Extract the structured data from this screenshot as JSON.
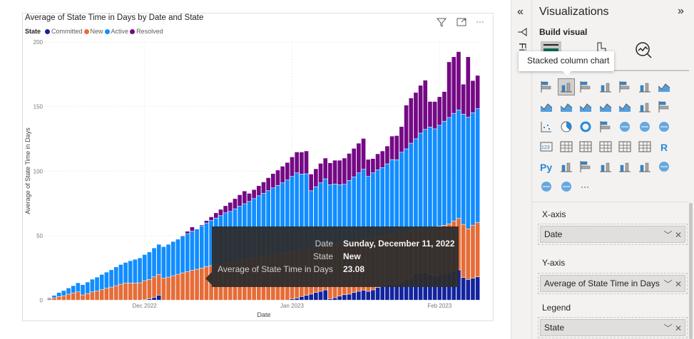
{
  "visual": {
    "title": "Average of State Time in Days by Date and State",
    "legend_title": "State",
    "header_icons": [
      "filter-icon",
      "focus-mode-icon",
      "more-options-icon"
    ],
    "more_label": "···"
  },
  "tooltip": {
    "rows": [
      {
        "key": "Date",
        "value": "Sunday, December 11, 2022"
      },
      {
        "key": "State",
        "value": "New"
      },
      {
        "key": "Average of State Time in Days",
        "value": "23.08"
      }
    ]
  },
  "chart_data": {
    "type": "bar",
    "stacked": true,
    "title": "Average of State Time in Days by Date and State",
    "xlabel": "Date",
    "ylabel": "Average of State Time in Days",
    "ylim": [
      0,
      200
    ],
    "yticks": [
      "0",
      "50",
      "100",
      "150",
      "200"
    ],
    "xticks": [
      {
        "label": "Dec 2022",
        "date": "2022-12-01"
      },
      {
        "label": "Jan 2023",
        "date": "2023-01-01"
      },
      {
        "label": "Feb 2023",
        "date": "2023-02-01"
      }
    ],
    "grid": true,
    "legend": "top-left",
    "x": [
      "2022-11-11",
      "2022-11-12",
      "2022-11-13",
      "2022-11-14",
      "2022-11-15",
      "2022-11-16",
      "2022-11-17",
      "2022-11-18",
      "2022-11-19",
      "2022-11-20",
      "2022-11-21",
      "2022-11-22",
      "2022-11-23",
      "2022-11-24",
      "2022-11-25",
      "2022-11-26",
      "2022-11-27",
      "2022-11-28",
      "2022-11-29",
      "2022-11-30",
      "2022-12-01",
      "2022-12-02",
      "2022-12-03",
      "2022-12-04",
      "2022-12-05",
      "2022-12-06",
      "2022-12-07",
      "2022-12-08",
      "2022-12-09",
      "2022-12-10",
      "2022-12-11",
      "2022-12-12",
      "2022-12-13",
      "2022-12-14",
      "2022-12-15",
      "2022-12-16",
      "2022-12-17",
      "2022-12-18",
      "2022-12-19",
      "2022-12-20",
      "2022-12-21",
      "2022-12-22",
      "2022-12-23",
      "2022-12-24",
      "2022-12-25",
      "2022-12-26",
      "2022-12-27",
      "2022-12-28",
      "2022-12-29",
      "2022-12-30",
      "2022-12-31",
      "2023-01-01",
      "2023-01-02",
      "2023-01-03",
      "2023-01-04",
      "2023-01-05",
      "2023-01-06",
      "2023-01-07",
      "2023-01-08",
      "2023-01-09",
      "2023-01-10",
      "2023-01-11",
      "2023-01-12",
      "2023-01-13",
      "2023-01-14",
      "2023-01-15",
      "2023-01-16",
      "2023-01-17",
      "2023-01-18",
      "2023-01-19",
      "2023-01-20",
      "2023-01-21",
      "2023-01-22",
      "2023-01-23",
      "2023-01-24",
      "2023-01-25",
      "2023-01-26",
      "2023-01-27",
      "2023-01-28",
      "2023-01-29",
      "2023-01-30",
      "2023-01-31",
      "2023-02-01",
      "2023-02-02",
      "2023-02-03",
      "2023-02-04",
      "2023-02-05",
      "2023-02-06",
      "2023-02-07",
      "2023-02-08",
      "2023-02-09"
    ],
    "series": [
      {
        "name": "Committed",
        "color": "#12239e",
        "values": [
          0,
          0,
          0,
          0,
          0,
          0,
          0,
          0,
          0,
          0,
          0,
          0,
          0,
          0,
          0,
          0,
          0,
          0,
          0,
          0,
          0.5,
          1,
          2,
          3.8,
          0,
          0,
          0,
          0,
          0,
          0,
          0,
          0,
          0,
          0,
          0,
          0,
          0,
          0,
          0,
          0,
          0,
          0,
          0,
          0,
          0,
          0,
          0,
          0,
          0,
          0,
          0,
          1,
          1.5,
          2.8,
          3.7,
          4.6,
          5.9,
          6.8,
          7.9,
          1,
          1.8,
          3.1,
          4.2,
          4.6,
          5.9,
          6.8,
          7.7,
          6.8,
          7.9,
          9.8,
          10.5,
          12,
          12,
          12.3,
          13.8,
          15.7,
          16.6,
          20.3,
          21.2,
          21.5,
          19.7,
          18.4,
          19.3,
          20.3,
          21.5,
          22.5,
          23.4,
          17.5,
          16,
          17,
          18
        ]
      },
      {
        "name": "New",
        "color": "#e66c37",
        "values": [
          1,
          1.8,
          2.8,
          3.3,
          4.6,
          5.5,
          6.4,
          4,
          5.1,
          6.4,
          7,
          8.1,
          9.2,
          10.1,
          11.2,
          12.3,
          13.2,
          13.2,
          13.2,
          13.4,
          14.6,
          15,
          16,
          16.1,
          16.9,
          17.8,
          18.9,
          20,
          21.1,
          22,
          23.08,
          23.9,
          24.8,
          25.9,
          26.7,
          27.3,
          28,
          28.6,
          29.3,
          29.9,
          30.5,
          31.2,
          31.8,
          32.5,
          33.1,
          33.7,
          34.4,
          35,
          35.6,
          36.3,
          36.9,
          36.6,
          36.7,
          36,
          35.8,
          35.5,
          34.8,
          34.6,
          34.1,
          41.7,
          41.5,
          40.8,
          40.4,
          40.6,
          39.9,
          39.7,
          39.4,
          41,
          40.5,
          39.2,
          39.2,
          38.3,
          38.9,
          39.3,
          38.4,
          37.2,
          36.9,
          33.8,
          33.6,
          33.9,
          36.3,
          38.3,
          38,
          37.6,
          37.5,
          38.8,
          39.8,
          41.1,
          39.2,
          41,
          42.2
        ]
      },
      {
        "name": "Active",
        "color": "#118dff",
        "values": [
          0.8,
          1.9,
          3.1,
          4.1,
          4.8,
          5.7,
          7,
          8,
          8.9,
          9.8,
          10.8,
          11.8,
          12.5,
          13.4,
          14.5,
          15.3,
          16,
          17.3,
          18.4,
          19.3,
          20.2,
          21.3,
          22.4,
          23.3,
          24.5,
          25.4,
          26.5,
          27.2,
          28.4,
          29.5,
          30.3,
          31.1,
          32.7,
          33.8,
          35,
          36.2,
          37.4,
          39,
          39.4,
          40.8,
          42.2,
          43.4,
          44.6,
          46.1,
          47.7,
          49,
          50.3,
          51.9,
          53.2,
          54.5,
          56.1,
          58.2,
          60.3,
          58.8,
          58.3,
          44.6,
          47.1,
          49.4,
          51.9,
          46.6,
          46.6,
          45.4,
          45.1,
          47.4,
          49.6,
          52,
          54.2,
          48,
          50.1,
          51.9,
          52.9,
          55.2,
          57.9,
          57.1,
          62.3,
          64.2,
          68,
          70.8,
          74.5,
          76.8,
          78,
          75.9,
          78.1,
          80.6,
          82.4,
          83.3,
          84.1,
          85.4,
          86.4,
          87.1,
          88
        ]
      },
      {
        "name": "Resolved",
        "color": "#750985",
        "values": [
          0,
          0,
          0,
          0,
          0,
          0,
          0,
          0,
          0,
          0,
          0,
          0,
          0,
          0,
          0,
          0,
          0,
          0,
          0,
          0,
          0,
          0,
          0,
          0,
          0,
          0,
          0,
          0,
          0.5,
          1.8,
          3.3,
          0,
          0.8,
          1.9,
          2.8,
          4.1,
          4.9,
          5.5,
          7,
          7.9,
          8.9,
          9.9,
          6.3,
          7,
          7.8,
          8.8,
          10.1,
          11.1,
          11.9,
          12.9,
          13.6,
          15.1,
          16.2,
          17.1,
          17.7,
          12.9,
          13.9,
          15.1,
          16.1,
          17,
          18.4,
          19,
          20.3,
          21,
          22.1,
          23,
          23.9,
          13.2,
          11.1,
          12.4,
          12.9,
          13.8,
          18.2,
          18.7,
          19.9,
          33.9,
          35,
          35.9,
          37,
          38.1,
          19.8,
          21.2,
          22.1,
          23,
          43.1,
          43.8,
          45.1,
          23.2,
          46.8,
          24.9,
          25.8
        ]
      }
    ]
  },
  "filters_pane": {
    "label": "Filters",
    "collapse_icon": "chevron-double-left-icon",
    "filter_icon": "filter-icon"
  },
  "viz_pane": {
    "title": "Visualizations",
    "expand_icon": "chevron-double-right-icon",
    "build_label": "Build visual",
    "tabs": [
      "build-fields-icon",
      "format-visual-icon",
      "analytics-icon"
    ],
    "tooltip": "Stacked column chart",
    "selected_visual": "stacked-column-chart",
    "visuals": [
      "stacked-bar-chart",
      "stacked-column-chart",
      "clustered-bar-chart",
      "clustered-column-chart",
      "100-stacked-bar-chart",
      "100-stacked-column-chart",
      "line-chart",
      "area-chart",
      "stacked-area-chart",
      "line-and-stacked-column-chart",
      "line-and-clustered-column-chart",
      "ribbon-chart",
      "waterfall-chart",
      "funnel-chart",
      "scatter-chart",
      "pie-chart",
      "donut-chart",
      "treemap",
      "map",
      "filled-map",
      "gauge",
      "card",
      "multi-row-card",
      "kpi",
      "slicer",
      "table",
      "matrix",
      "r-script-visual",
      "python-visual",
      "key-influencers",
      "decomposition-tree",
      "qa",
      "smart-narrative",
      "paginated-report",
      "azure-map",
      "power-apps",
      "power-automate",
      "get-more-visuals"
    ],
    "wells": [
      {
        "label": "X-axis",
        "field": "Date"
      },
      {
        "label": "Y-axis",
        "field": "Average of State Time in Days"
      },
      {
        "label": "Legend",
        "field": "State"
      }
    ],
    "well_controls": {
      "expand": "﹀",
      "remove": "✕"
    }
  }
}
